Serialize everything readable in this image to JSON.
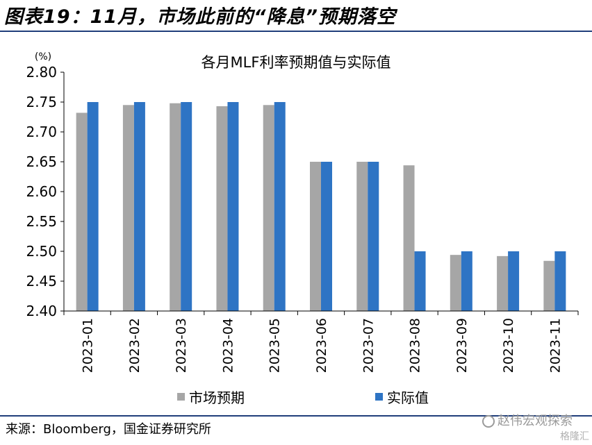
{
  "figure_title": "图表19：11月，市场此前的“降息”预期落空",
  "source": "来源：Bloomberg，国金证券研究所",
  "watermark": "赵伟宏观探索",
  "watermark2": "格隆汇",
  "colors": {
    "market": "#a6a6a6",
    "actual": "#2e74c4",
    "rule": "#1f3d7a"
  },
  "chart_data": {
    "type": "bar",
    "title": "各月MLF利率预期值与实际值",
    "unit_label": "(%)",
    "categories": [
      "2023-01",
      "2023-02",
      "2023-03",
      "2023-04",
      "2023-05",
      "2023-06",
      "2023-07",
      "2023-08",
      "2023-09",
      "2023-10",
      "2023-11"
    ],
    "series": [
      {
        "name": "市场预期",
        "values": [
          2.732,
          2.745,
          2.748,
          2.743,
          2.745,
          2.65,
          2.65,
          2.644,
          2.494,
          2.492,
          2.484
        ]
      },
      {
        "name": "实际值",
        "values": [
          2.75,
          2.75,
          2.75,
          2.75,
          2.75,
          2.65,
          2.65,
          2.5,
          2.5,
          2.5,
          2.5
        ]
      }
    ],
    "ylim": [
      2.4,
      2.8
    ],
    "yticks": [
      "2.40",
      "2.45",
      "2.50",
      "2.55",
      "2.60",
      "2.65",
      "2.70",
      "2.75",
      "2.80"
    ],
    "legend_position": "bottom",
    "grid": false
  }
}
